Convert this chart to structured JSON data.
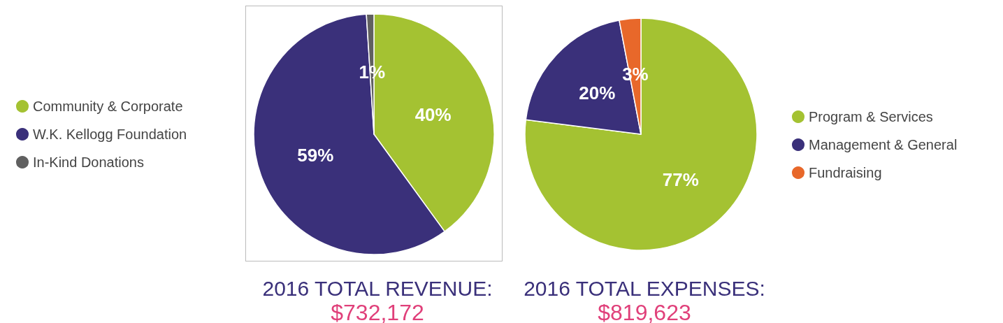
{
  "chart_data": [
    {
      "type": "pie",
      "title": "2016 TOTAL REVENUE:",
      "subtitle": "$732,172",
      "categories": [
        "Community & Corporate",
        "W.K. Kellogg Foundation",
        "In-Kind Donations"
      ],
      "values": [
        40,
        59,
        1
      ],
      "colors": [
        "#a4c232",
        "#3a307a",
        "#606060"
      ],
      "value_labels": [
        "40%",
        "59%",
        "1%"
      ],
      "legend": "left"
    },
    {
      "type": "pie",
      "title": "2016 TOTAL EXPENSES:",
      "subtitle": "$819,623",
      "categories": [
        "Program & Services",
        "Management & General",
        "Fundraising"
      ],
      "values": [
        77,
        20,
        3
      ],
      "colors": [
        "#a4c232",
        "#3a307a",
        "#e8682a"
      ],
      "value_labels": [
        "77%",
        "20%",
        "3%"
      ],
      "legend": "right"
    }
  ]
}
